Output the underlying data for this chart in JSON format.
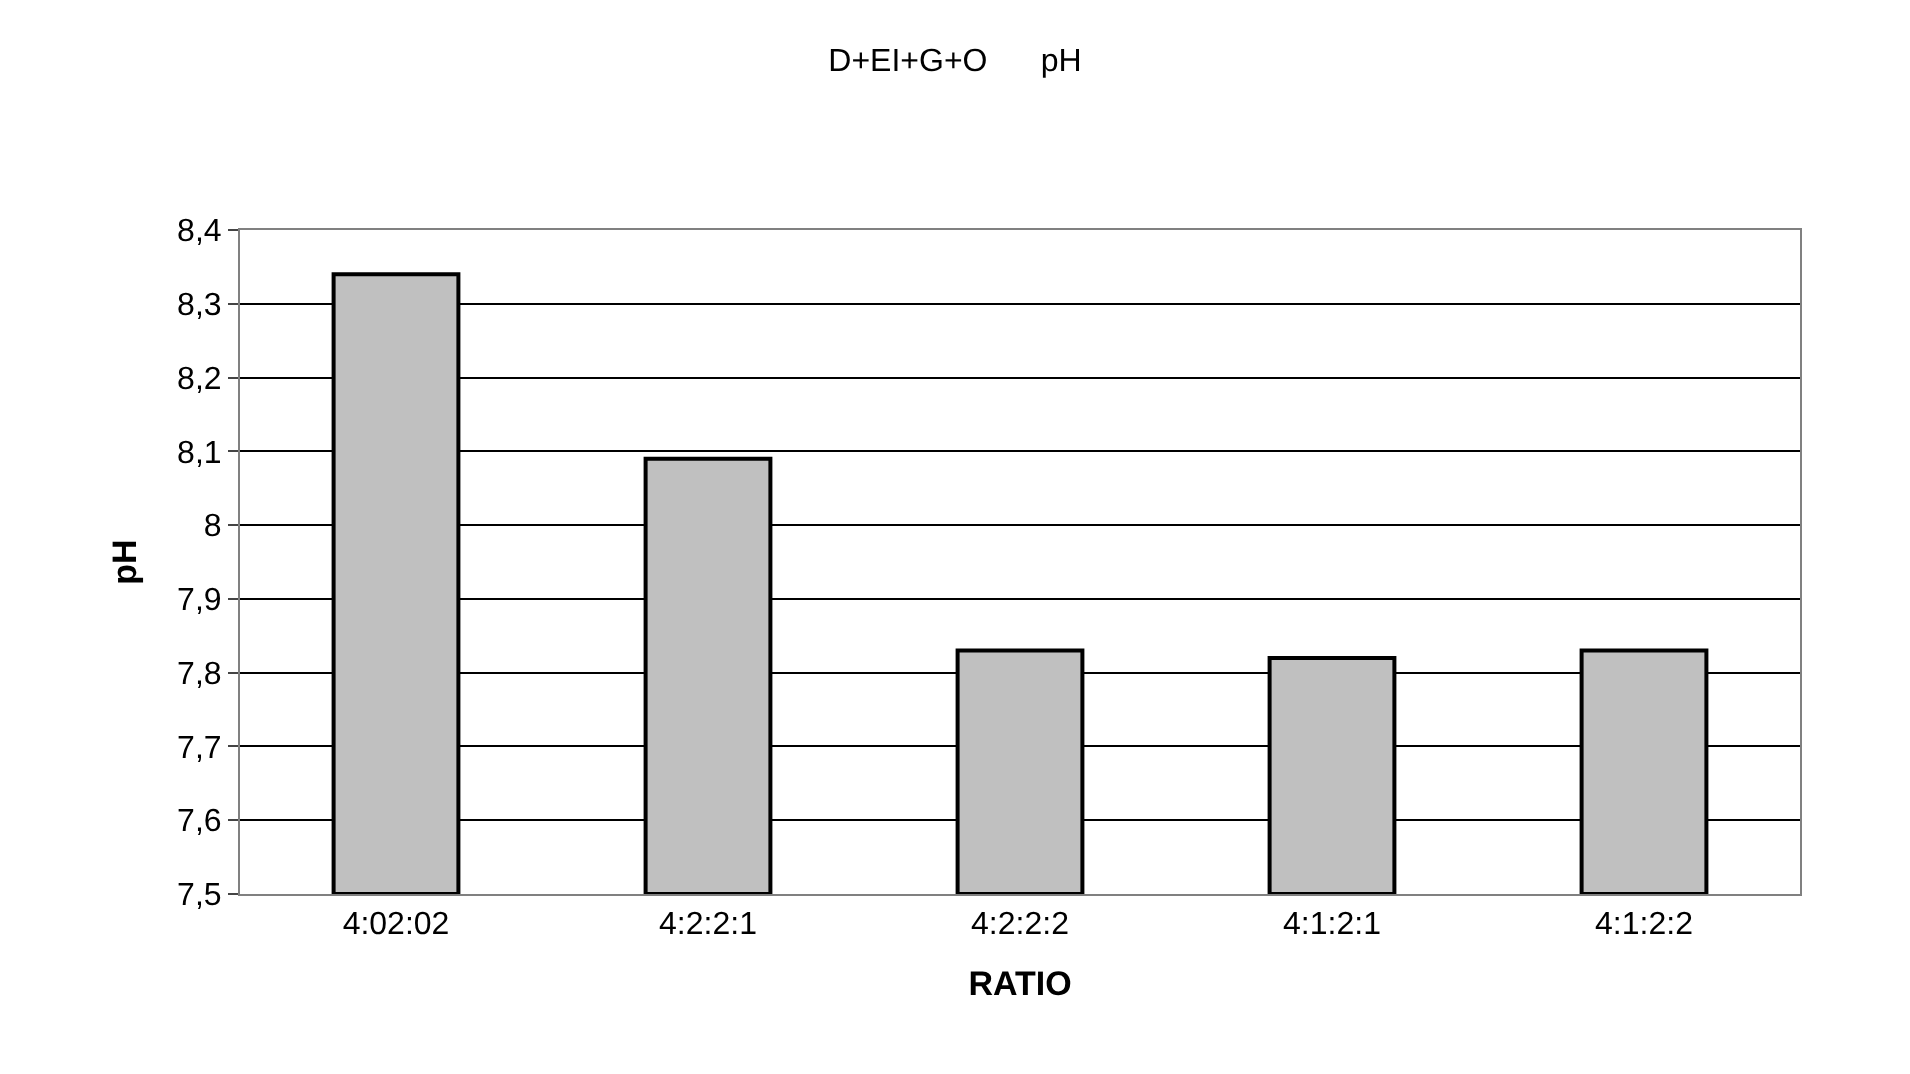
{
  "chart_data": {
    "type": "bar",
    "title": "D+EI+G+O      pH",
    "xlabel": "RATIO",
    "ylabel": "pH",
    "categories": [
      "4:02:02",
      "4:2:2:1",
      "4:2:2:2",
      "4:1:2:1",
      "4:1:2:2"
    ],
    "values": [
      8.34,
      8.09,
      7.83,
      7.82,
      7.83
    ],
    "color": "#c0c0c0",
    "ylim": [
      7.5,
      8.4
    ],
    "yticks": [
      {
        "value": 7.5,
        "label": "7,5"
      },
      {
        "value": 7.6,
        "label": "7,6"
      },
      {
        "value": 7.7,
        "label": "7,7"
      },
      {
        "value": 7.8,
        "label": "7,8"
      },
      {
        "value": 7.9,
        "label": "7,9"
      },
      {
        "value": 8,
        "label": "8"
      },
      {
        "value": 8.1,
        "label": "8,1"
      },
      {
        "value": 8.2,
        "label": "8,2"
      },
      {
        "value": 8.3,
        "label": "8,3"
      },
      {
        "value": 8.4,
        "label": "8,4"
      }
    ],
    "grid": "y",
    "legend": false
  }
}
